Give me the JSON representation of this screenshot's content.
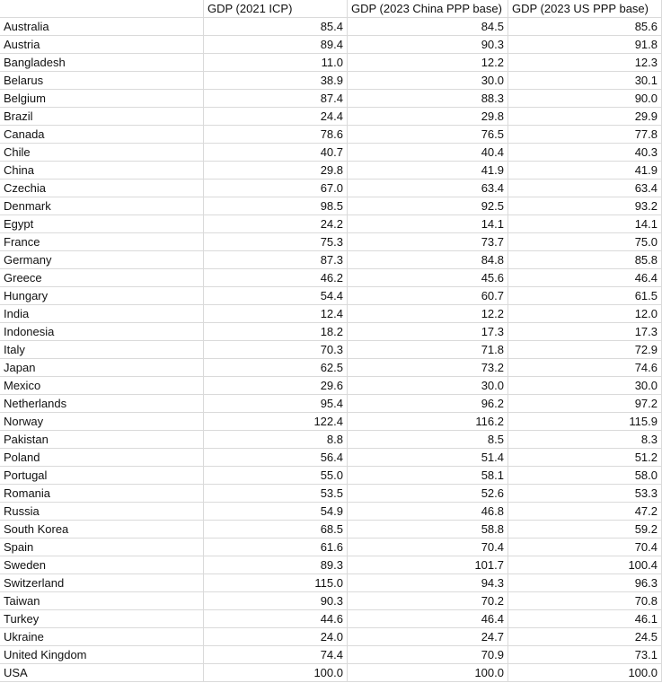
{
  "table": {
    "header": [
      "GDP (2021 ICP)",
      "GDP (2023 China PPP base)",
      "GDP (2023 US PPP base)"
    ],
    "rows": [
      [
        "Australia",
        "85.4",
        "84.5",
        "85.6"
      ],
      [
        "Austria",
        "89.4",
        "90.3",
        "91.8"
      ],
      [
        "Bangladesh",
        "11.0",
        "12.2",
        "12.3"
      ],
      [
        "Belarus",
        "38.9",
        "30.0",
        "30.1"
      ],
      [
        "Belgium",
        "87.4",
        "88.3",
        "90.0"
      ],
      [
        "Brazil",
        "24.4",
        "29.8",
        "29.9"
      ],
      [
        "Canada",
        "78.6",
        "76.5",
        "77.8"
      ],
      [
        "Chile",
        "40.7",
        "40.4",
        "40.3"
      ],
      [
        "China",
        "29.8",
        "41.9",
        "41.9"
      ],
      [
        "Czechia",
        "67.0",
        "63.4",
        "63.4"
      ],
      [
        "Denmark",
        "98.5",
        "92.5",
        "93.2"
      ],
      [
        "Egypt",
        "24.2",
        "14.1",
        "14.1"
      ],
      [
        "France",
        "75.3",
        "73.7",
        "75.0"
      ],
      [
        "Germany",
        "87.3",
        "84.8",
        "85.8"
      ],
      [
        "Greece",
        "46.2",
        "45.6",
        "46.4"
      ],
      [
        "Hungary",
        "54.4",
        "60.7",
        "61.5"
      ],
      [
        "India",
        "12.4",
        "12.2",
        "12.0"
      ],
      [
        "Indonesia",
        "18.2",
        "17.3",
        "17.3"
      ],
      [
        "Italy",
        "70.3",
        "71.8",
        "72.9"
      ],
      [
        "Japan",
        "62.5",
        "73.2",
        "74.6"
      ],
      [
        "Mexico",
        "29.6",
        "30.0",
        "30.0"
      ],
      [
        "Netherlands",
        "95.4",
        "96.2",
        "97.2"
      ],
      [
        "Norway",
        "122.4",
        "116.2",
        "115.9"
      ],
      [
        "Pakistan",
        "8.8",
        "8.5",
        "8.3"
      ],
      [
        "Poland",
        "56.4",
        "51.4",
        "51.2"
      ],
      [
        "Portugal",
        "55.0",
        "58.1",
        "58.0"
      ],
      [
        "Romania",
        "53.5",
        "52.6",
        "53.3"
      ],
      [
        "Russia",
        "54.9",
        "46.8",
        "47.2"
      ],
      [
        "South Korea",
        "68.5",
        "58.8",
        "59.2"
      ],
      [
        "Spain",
        "61.6",
        "70.4",
        "70.4"
      ],
      [
        "Sweden",
        "89.3",
        "101.7",
        "100.4"
      ],
      [
        "Switzerland",
        "115.0",
        "94.3",
        "96.3"
      ],
      [
        "Taiwan",
        "90.3",
        "70.2",
        "70.8"
      ],
      [
        "Turkey",
        "44.6",
        "46.4",
        "46.1"
      ],
      [
        "Ukraine",
        "24.0",
        "24.7",
        "24.5"
      ],
      [
        "United Kingdom",
        "74.4",
        "70.9",
        "73.1"
      ],
      [
        "USA",
        "100.0",
        "100.0",
        "100.0"
      ]
    ]
  }
}
